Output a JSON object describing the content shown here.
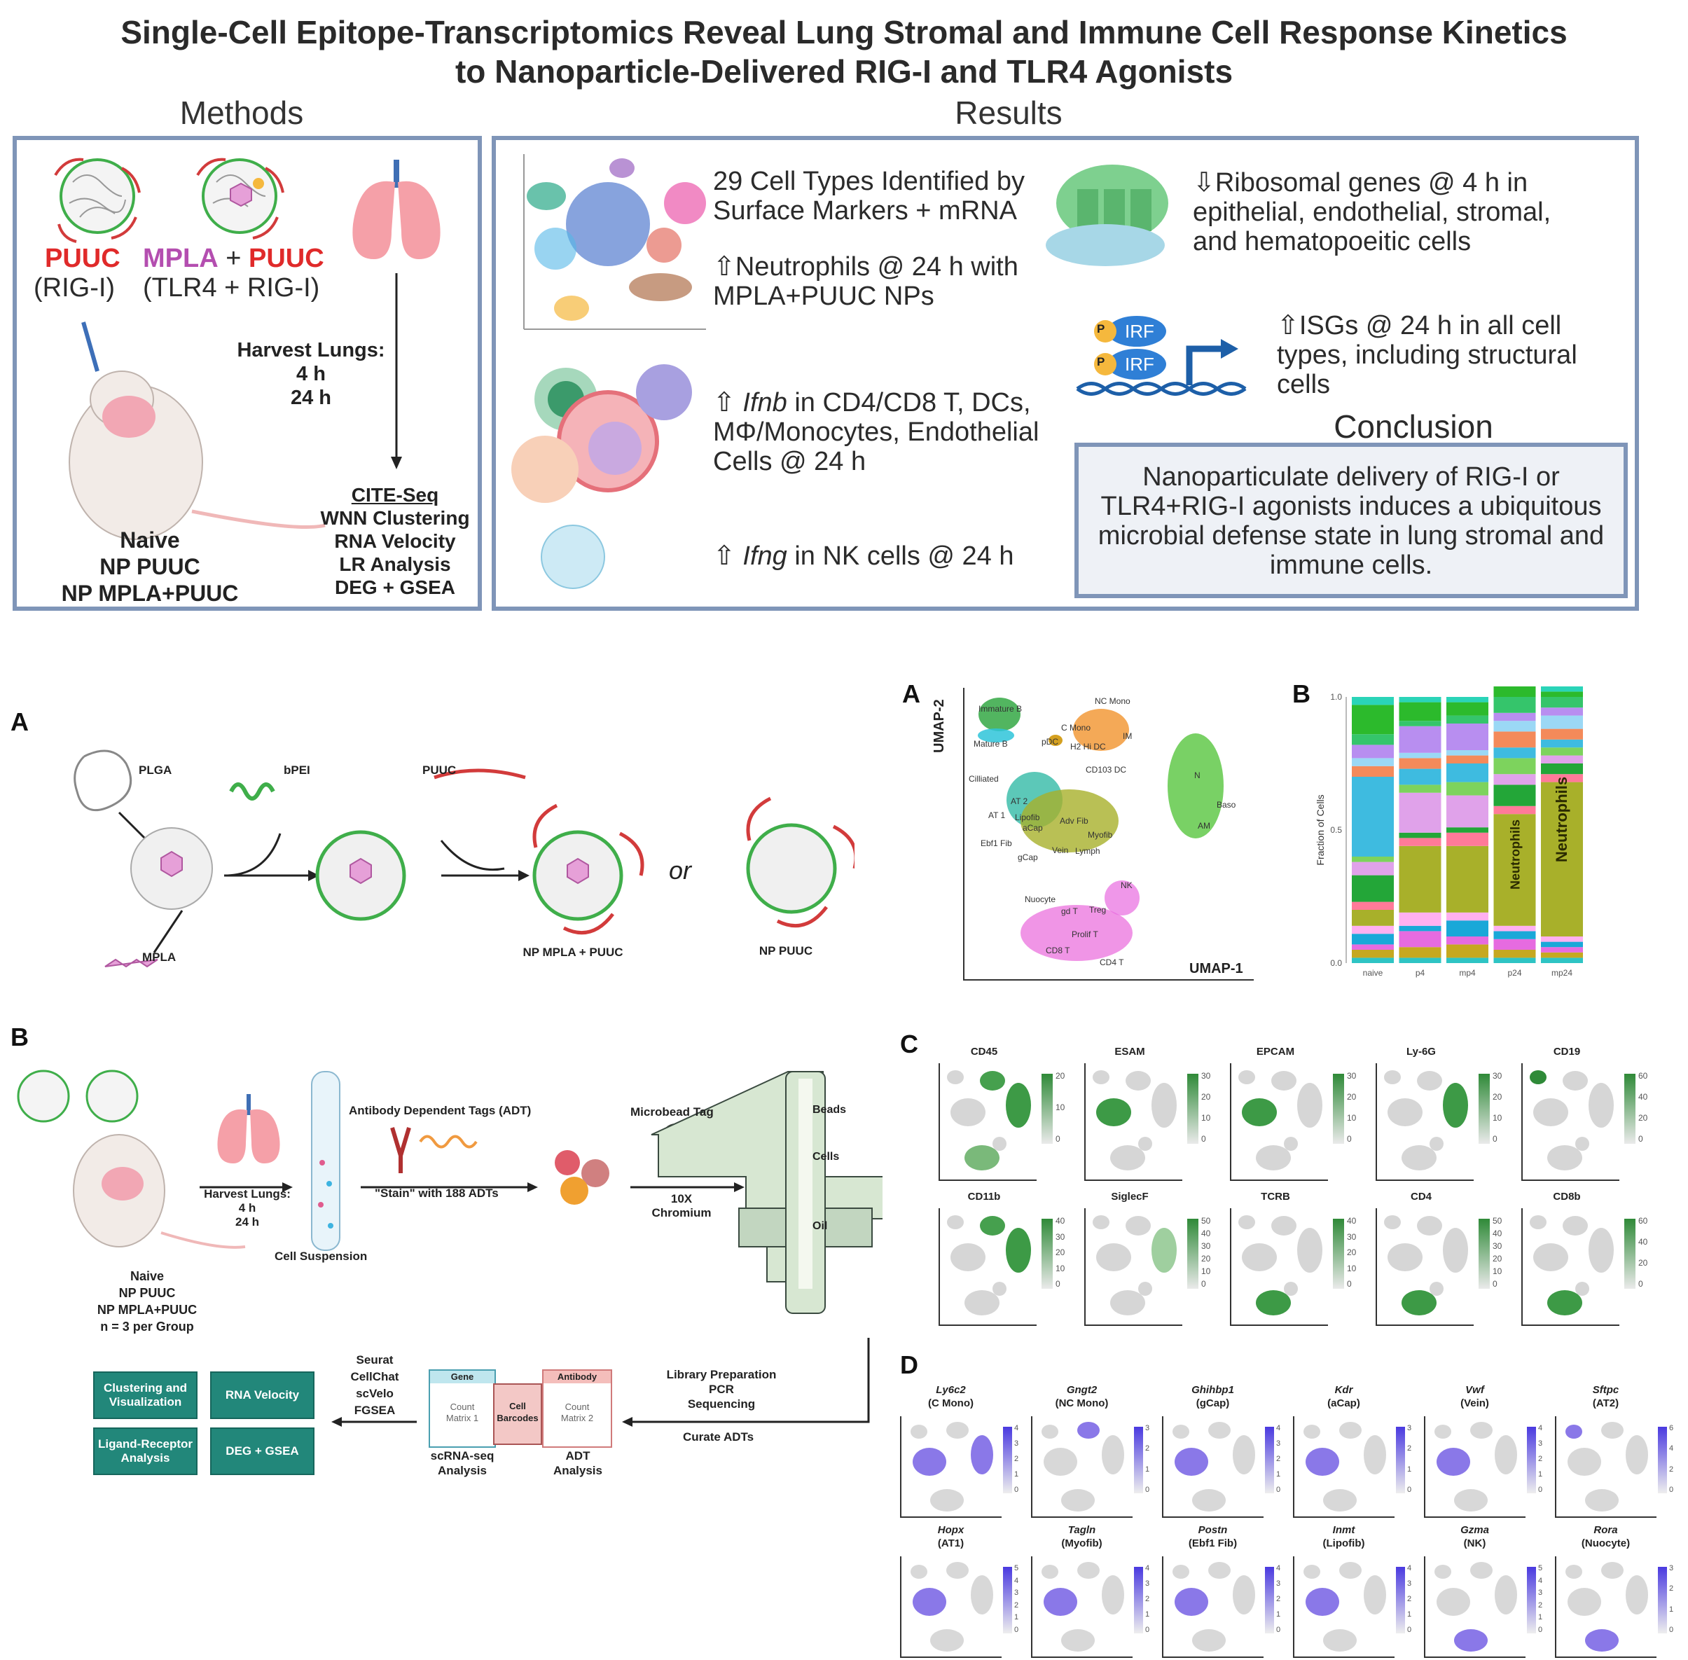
{
  "title": {
    "line1": "Single-Cell Epitope-Transcriptomics Reveal Lung Stromal and Immune Cell Response Kinetics",
    "line2": "to Nanoparticle-Delivered RIG-I and TLR4 Agonists"
  },
  "abstract": {
    "methods_heading": "Methods",
    "results_heading": "Results",
    "methods": {
      "puuc": "PUUC",
      "puuc_target": "(RIG-I)",
      "mpla": "MPLA",
      "plus": " + ",
      "puuc2": "PUUC",
      "mpla_target": "(TLR4 + RIG-I)",
      "harvest_label": "Harvest Lungs:",
      "harvest_t1": "4 h",
      "harvest_t2": "24 h",
      "groups": [
        "Naive",
        "NP PUUC",
        "NP MPLA+PUUC"
      ],
      "cite_title": "CITE-Seq",
      "cite_steps": [
        "WNN Clustering",
        "RNA Velocity",
        "LR Analysis",
        "DEG + GSEA"
      ]
    },
    "results": {
      "r1a": "29 Cell Types Identified by",
      "r1b": "Surface Markers + mRNA",
      "r2a": "⇧Neutrophils @ 24 h with",
      "r2b": "MPLA+PUUC NPs",
      "r3a_pre": "⇧ ",
      "r3a_gene": "Ifnb",
      "r3a_post": " in CD4/CD8 T, DCs,",
      "r3b": "MΦ/Monocytes, Endothelial",
      "r3c": "Cells @ 24 h",
      "r4_pre": "⇧ ",
      "r4_gene": "Ifng",
      "r4_post": " in NK cells @ 24 h",
      "r5a": "⇩Ribosomal genes @ 4 h in",
      "r5b": "epithelial, endothelial, stromal,",
      "r5c": "and hematopoeitic cells",
      "r6a": "⇧ISGs @ 24 h in all cell",
      "r6b": "types, including structural",
      "r6c": "cells",
      "irf": "IRF",
      "p": "P",
      "conclusion_heading": "Conclusion",
      "conclusion": [
        "Nanoparticulate delivery of RIG-I or",
        "TLR4+RIG-I agonists induces a ubiquitous",
        "microbial defense state in lung stromal and",
        "immune cells."
      ]
    }
  },
  "figA": {
    "letter": "A",
    "plga": "PLGA",
    "bpei": "bPEI",
    "puuc": "PUUC",
    "mpla": "MPLA",
    "np_mpla_puuc": "NP MPLA + PUUC",
    "np_puuc": "NP  PUUC",
    "or": "or"
  },
  "figB": {
    "letter": "B",
    "harvest": "Harvest Lungs:",
    "t1": "4 h",
    "t2": "24 h",
    "groups": [
      "Naive",
      "NP PUUC",
      "NP MPLA+PUUC",
      "n = 3 per Group"
    ],
    "cell_suspension": "Cell Suspension",
    "adt_title": "Antibody Dependent Tags (ADT)",
    "stain": "\"Stain\" with 188 ADTs",
    "microbead": "Microbead Tag",
    "chromium1": "10X",
    "chromium2": "Chromium",
    "beads": "Beads",
    "cells": "Cells",
    "oil": "Oil",
    "library": [
      "Library Preparation",
      "PCR",
      "Sequencing"
    ],
    "curate": "Curate ADTs",
    "gene": "Gene",
    "antibody": "Antibody",
    "count1": [
      "Count",
      "Matrix 1"
    ],
    "count2": [
      "Count",
      "Matrix 2"
    ],
    "barcodes": [
      "Cell",
      "Barcodes"
    ],
    "scrna": [
      "scRNA-seq",
      "Analysis"
    ],
    "adt_analysis": [
      "ADT",
      "Analysis"
    ],
    "tools": [
      "Seurat",
      "CellChat",
      "scVelo",
      "FGSEA"
    ],
    "outputs": [
      "Clustering and Visualization",
      "RNA Velocity",
      "Ligand-Receptor Analysis",
      "DEG + GSEA"
    ]
  },
  "umap": {
    "letter": "A",
    "xlabel": "UMAP-1",
    "ylabel": "UMAP-2",
    "labels": [
      "Immature B",
      "Mature B",
      "NC Mono",
      "C Mono",
      "IM",
      "pDC",
      "H2 Hi DC",
      "CD103 DC",
      "Cilliated",
      "AT 2",
      "AT 1",
      "Lipofib",
      "aCap",
      "Ebf1 Fib",
      "Adv Fib",
      "Myofib",
      "Vein",
      "Lymph",
      "gCap",
      "N",
      "Baso",
      "AM",
      "NK",
      "Nuocyte",
      "gd T",
      "Treg",
      "Prolif T",
      "CD8 T",
      "CD4 T"
    ]
  },
  "chart_data": {
    "type": "bar",
    "letter": "B",
    "ylabel": "Fraction of Cells",
    "categories": [
      "naive",
      "p4",
      "mp4",
      "p24",
      "mp24"
    ],
    "yticks": [
      "0.0",
      "0.5",
      "1.0"
    ],
    "ylim": [
      0,
      1
    ],
    "annotations": [
      {
        "category": "p24",
        "text": "Neutrophils"
      },
      {
        "category": "mp24",
        "text": "Neutrophils"
      }
    ],
    "stacks": [
      [
        0.02,
        0.03,
        0.02,
        0.04,
        0.03,
        0.06,
        0.03,
        0.1,
        0.05,
        0.02,
        0.3,
        0.04,
        0.03,
        0.05,
        0.04,
        0.11,
        0.03
      ],
      [
        0.02,
        0.04,
        0.06,
        0.02,
        0.05,
        0.25,
        0.03,
        0.02,
        0.15,
        0.03,
        0.06,
        0.04,
        0.02,
        0.1,
        0.02,
        0.07,
        0.02
      ],
      [
        0.02,
        0.05,
        0.03,
        0.06,
        0.03,
        0.25,
        0.05,
        0.02,
        0.12,
        0.05,
        0.07,
        0.03,
        0.02,
        0.1,
        0.03,
        0.05,
        0.02
      ],
      [
        0.02,
        0.03,
        0.04,
        0.03,
        0.02,
        0.42,
        0.03,
        0.08,
        0.04,
        0.06,
        0.04,
        0.06,
        0.04,
        0.03,
        0.06,
        0.04,
        0.03
      ],
      [
        0.02,
        0.02,
        0.02,
        0.02,
        0.02,
        0.58,
        0.03,
        0.04,
        0.03,
        0.03,
        0.03,
        0.04,
        0.05,
        0.03,
        0.04,
        0.02,
        0.02
      ]
    ],
    "segment_colors": [
      "#2ec4c4",
      "#c6a820",
      "#e66be0",
      "#1aa8d8",
      "#ffb0f0",
      "#a8b02a",
      "#ff7a99",
      "#23a638",
      "#e0a2ea",
      "#7dd35d",
      "#3ebbe0",
      "#f48a5a",
      "#9bd8f5",
      "#b88ef0",
      "#35c56b",
      "#2cba2c",
      "#2ad4b8"
    ]
  },
  "adt": {
    "letter": "C",
    "panels": [
      {
        "name": "CD45",
        "ticks": [
          "20",
          "10",
          "0"
        ]
      },
      {
        "name": "ESAM",
        "ticks": [
          "30",
          "20",
          "10",
          "0"
        ]
      },
      {
        "name": "EPCAM",
        "ticks": [
          "30",
          "20",
          "10",
          "0"
        ]
      },
      {
        "name": "Ly-6G",
        "ticks": [
          "30",
          "20",
          "10",
          "0"
        ]
      },
      {
        "name": "CD19",
        "ticks": [
          "60",
          "40",
          "20",
          "0"
        ]
      },
      {
        "name": "CD11b",
        "ticks": [
          "40",
          "30",
          "20",
          "10",
          "0"
        ]
      },
      {
        "name": "SiglecF",
        "ticks": [
          "50",
          "40",
          "30",
          "20",
          "10",
          "0"
        ]
      },
      {
        "name": "TCRB",
        "ticks": [
          "40",
          "30",
          "20",
          "10",
          "0"
        ]
      },
      {
        "name": "CD4",
        "ticks": [
          "50",
          "40",
          "30",
          "20",
          "10",
          "0"
        ]
      },
      {
        "name": "CD8b",
        "ticks": [
          "60",
          "40",
          "20",
          "0"
        ]
      }
    ]
  },
  "rna": {
    "letter": "D",
    "panels": [
      {
        "gene": "Ly6c2",
        "cell": "(C Mono)",
        "ticks": [
          "4",
          "3",
          "2",
          "1",
          "0"
        ]
      },
      {
        "gene": "Gngt2",
        "cell": "(NC Mono)",
        "ticks": [
          "3",
          "2",
          "1",
          "0"
        ]
      },
      {
        "gene": "Ghihbp1",
        "cell": "(gCap)",
        "ticks": [
          "4",
          "3",
          "2",
          "1",
          "0"
        ]
      },
      {
        "gene": "Kdr",
        "cell": "(aCap)",
        "ticks": [
          "3",
          "2",
          "1",
          "0"
        ]
      },
      {
        "gene": "Vwf",
        "cell": "(Vein)",
        "ticks": [
          "4",
          "3",
          "2",
          "1",
          "0"
        ]
      },
      {
        "gene": "Sftpc",
        "cell": "(AT2)",
        "ticks": [
          "6",
          "4",
          "2",
          "0"
        ]
      },
      {
        "gene": "Hopx",
        "cell": "(AT1)",
        "ticks": [
          "5",
          "4",
          "3",
          "2",
          "1",
          "0"
        ]
      },
      {
        "gene": "Tagln",
        "cell": "(Myofib)",
        "ticks": [
          "4",
          "3",
          "2",
          "1",
          "0"
        ]
      },
      {
        "gene": "Postn",
        "cell": "(Ebf1 Fib)",
        "ticks": [
          "4",
          "3",
          "2",
          "1",
          "0"
        ]
      },
      {
        "gene": "Inmt",
        "cell": "(Lipofib)",
        "ticks": [
          "4",
          "3",
          "2",
          "1",
          "0"
        ]
      },
      {
        "gene": "Gzma",
        "cell": "(NK)",
        "ticks": [
          "5",
          "4",
          "3",
          "2",
          "1",
          "0"
        ]
      },
      {
        "gene": "Rora",
        "cell": "(Nuocyte)",
        "ticks": [
          "3",
          "2",
          "1",
          "0"
        ]
      }
    ]
  }
}
